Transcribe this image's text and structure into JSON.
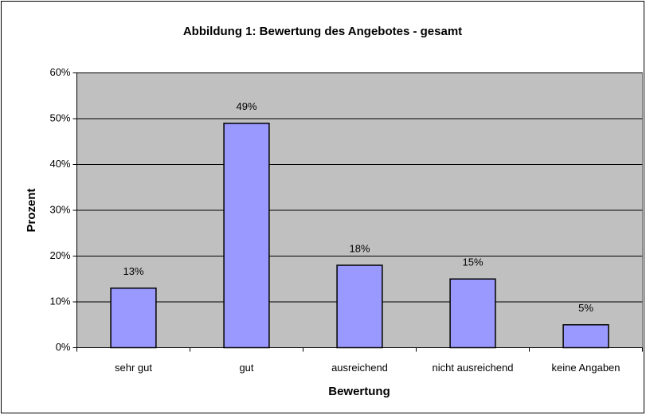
{
  "chart_data": {
    "type": "bar",
    "title": "Abbildung 1: Bewertung des Angebotes - gesamt",
    "x_label": "Bewertung",
    "y_label": "Prozent",
    "categories": [
      "sehr gut",
      "gut",
      "ausreichend",
      "nicht ausreichend",
      "keine Angaben"
    ],
    "values": [
      13,
      49,
      18,
      15,
      5
    ],
    "value_labels": [
      "13%",
      "49%",
      "18%",
      "15%",
      "5%"
    ],
    "color": "#9999ff",
    "ylim": [
      0,
      60
    ],
    "yticks": [
      {
        "value": 0,
        "label": "0%"
      },
      {
        "value": 10,
        "label": "10%"
      },
      {
        "value": 20,
        "label": "20%"
      },
      {
        "value": 30,
        "label": "30%"
      },
      {
        "value": 40,
        "label": "40%"
      },
      {
        "value": 50,
        "label": "50%"
      },
      {
        "value": 60,
        "label": "60%"
      }
    ],
    "grid": true
  }
}
